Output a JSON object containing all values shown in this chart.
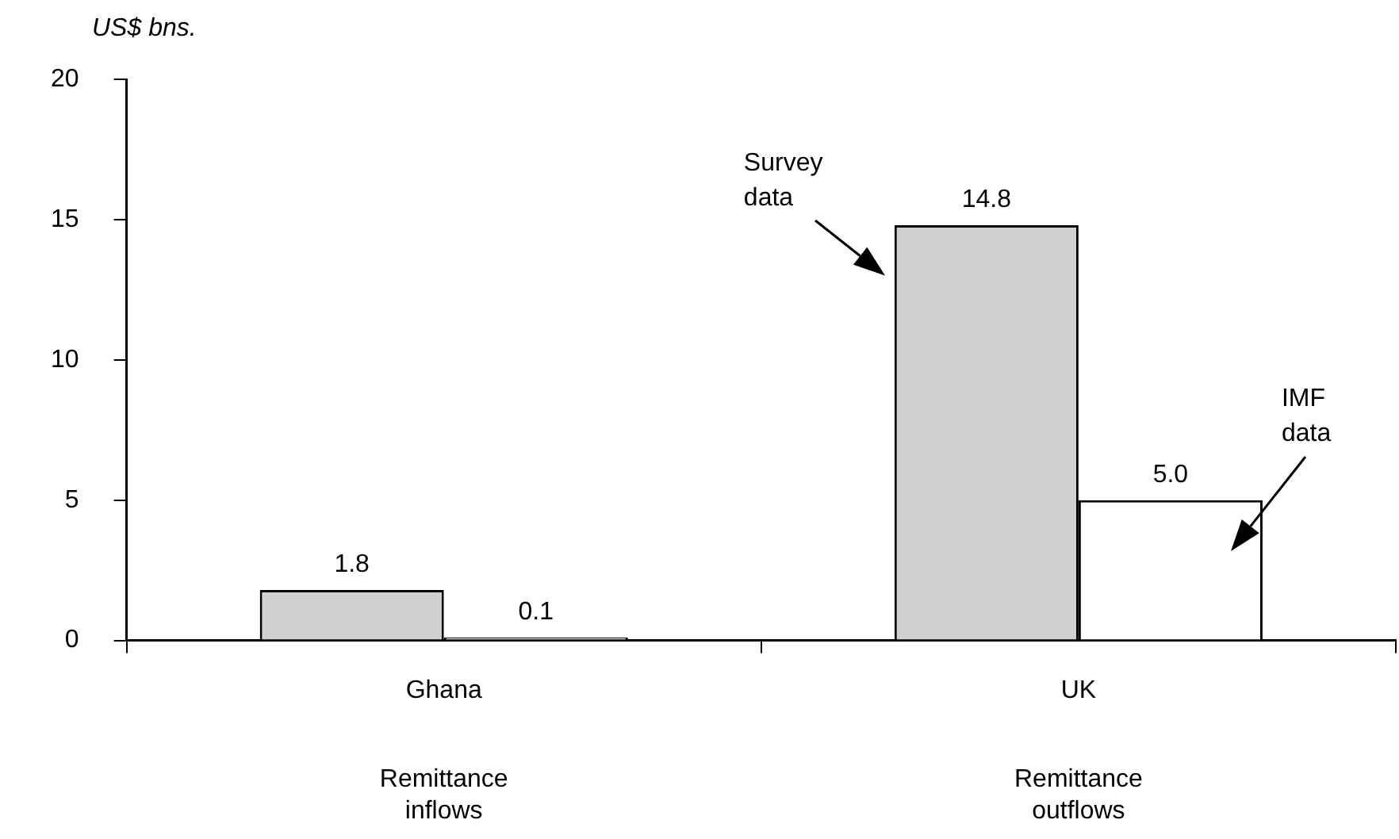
{
  "chart_data": {
    "type": "bar",
    "ylabel": "US$ bns.",
    "categories": [
      "Ghana",
      "UK"
    ],
    "series": [
      {
        "name": "Survey data",
        "color": "#d0d0d0",
        "values": [
          1.8,
          14.8
        ],
        "value_labels": [
          "1.8",
          "14.8"
        ]
      },
      {
        "name": "IMF data",
        "color": "#ffffff",
        "values": [
          0.1,
          5.0
        ],
        "value_labels": [
          "0.1",
          "5.0"
        ]
      }
    ],
    "annotations": [
      "Remittance\ninflows",
      "Remittance\noutflows"
    ],
    "ylim": [
      0,
      20
    ],
    "yticks": [
      0,
      5,
      10,
      15,
      20
    ],
    "grid": false,
    "legend": false
  }
}
